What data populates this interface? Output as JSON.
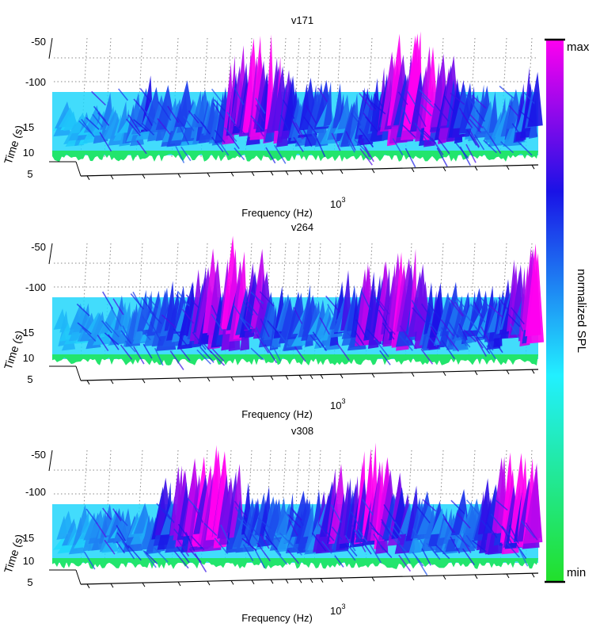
{
  "chart_data": {
    "type": "surface-3d-waterfall",
    "zlabel": "",
    "colormap": [
      "#22e02a",
      "#22f0ff",
      "#1a12e6",
      "#ff00f0"
    ],
    "colorbar": {
      "label": "normalized SPL",
      "max_label": "max",
      "min_label": "min"
    },
    "panels": [
      {
        "title": "v171",
        "xlabel": "Frequency (Hz)",
        "ylabel": "Time (s)",
        "z_ticks": [
          "-50",
          "-100"
        ],
        "y_ticks": [
          "15",
          "10",
          "5"
        ],
        "x_tick_label": {
          "base": "10",
          "exp": "3"
        },
        "seed": 171
      },
      {
        "title": "v264",
        "xlabel": "Frequency (Hz)",
        "ylabel": "Time (s)",
        "z_ticks": [
          "-50",
          "-100"
        ],
        "y_ticks": [
          "15",
          "10",
          "5"
        ],
        "x_tick_label": {
          "base": "10",
          "exp": "3"
        },
        "seed": 264
      },
      {
        "title": "v308",
        "xlabel": "Frequency (Hz)",
        "ylabel": "Time (s)",
        "z_ticks": [
          "-50",
          "-100"
        ],
        "y_ticks": [
          "15",
          "10",
          "5"
        ],
        "x_tick_label": {
          "base": "10",
          "exp": "3"
        },
        "seed": 308
      }
    ]
  }
}
